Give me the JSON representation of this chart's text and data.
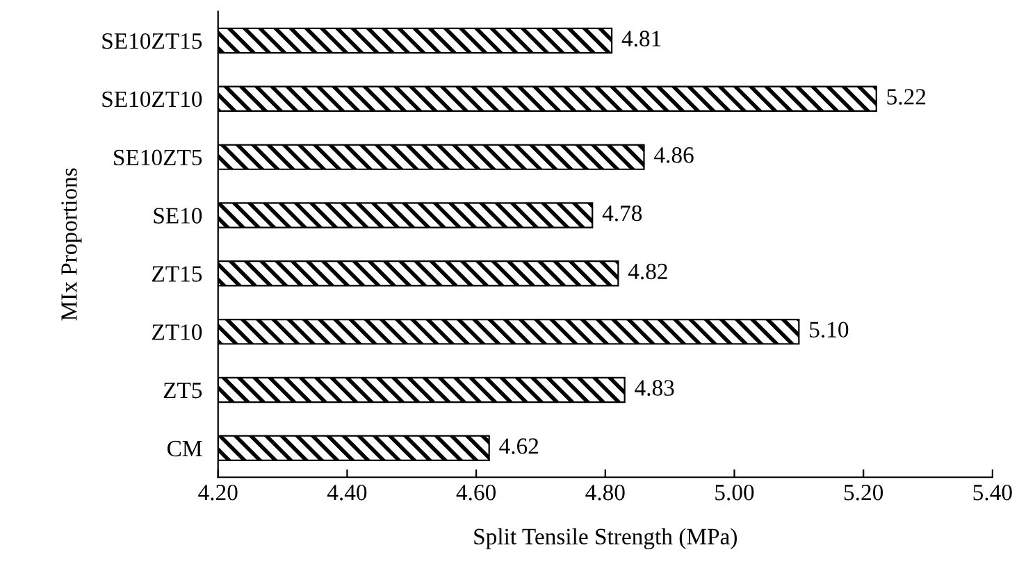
{
  "chart_data": {
    "type": "bar",
    "orientation": "horizontal",
    "xlabel": "Split Tensile Strength (MPa)",
    "ylabel": "MIx Proportions",
    "categories": [
      "SE10ZT15",
      "SE10ZT10",
      "SE10ZT5",
      "SE10",
      "ZT15",
      "ZT10",
      "ZT5",
      "CM"
    ],
    "values": [
      4.81,
      5.22,
      4.86,
      4.78,
      4.82,
      5.1,
      4.83,
      4.62
    ],
    "value_labels": [
      "4.81",
      "5.22",
      "4.86",
      "4.78",
      "4.82",
      "5.10",
      "4.83",
      "4.62"
    ],
    "color": "#000000",
    "xlim": [
      4.2,
      5.4
    ],
    "xticks": [
      {
        "value": 4.2,
        "label": "4.20"
      },
      {
        "value": 4.4,
        "label": "4.40"
      },
      {
        "value": 4.6,
        "label": "4.60"
      },
      {
        "value": 4.8,
        "label": "4.80"
      },
      {
        "value": 5.0,
        "label": "5.00"
      },
      {
        "value": 5.2,
        "label": "5.20"
      },
      {
        "value": 5.4,
        "label": "5.40"
      }
    ],
    "grid": false,
    "legend": false
  }
}
